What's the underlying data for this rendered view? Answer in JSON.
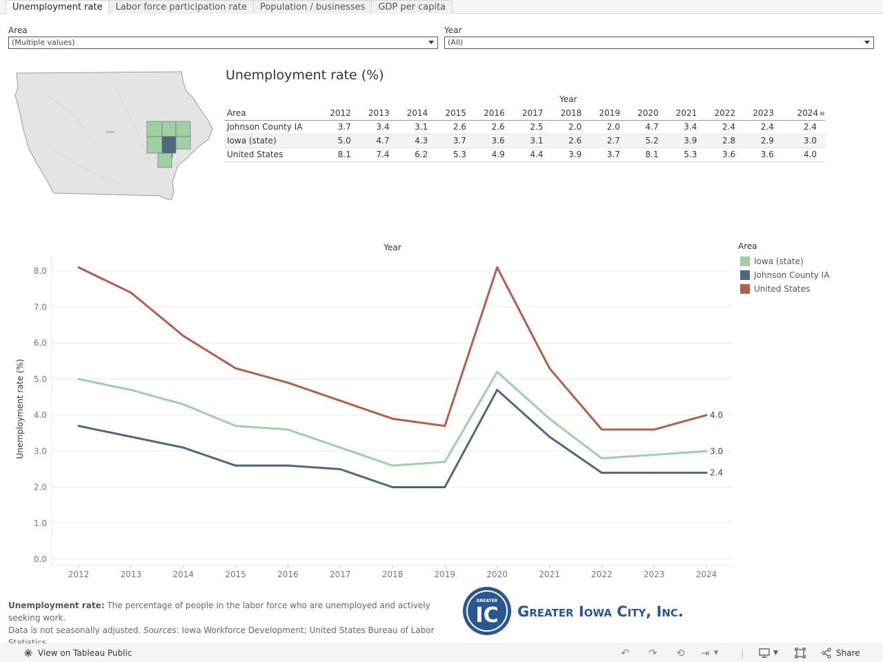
{
  "tabs": [
    {
      "label": "Unemployment rate",
      "active": true
    },
    {
      "label": "Labor force participation rate",
      "active": false
    },
    {
      "label": "Population / businesses",
      "active": false
    },
    {
      "label": "GDP per capita",
      "active": false
    }
  ],
  "filters": {
    "area": {
      "label": "Area",
      "value": "(Multiple values)"
    },
    "year": {
      "label": "Year",
      "value": "(All)"
    }
  },
  "map": {
    "state_label": "Iowa"
  },
  "table": {
    "title": "Unemployment rate (%)",
    "year_header": "Year",
    "area_header": "Area",
    "years": [
      "2012",
      "2013",
      "2014",
      "2015",
      "2016",
      "2017",
      "2018",
      "2019",
      "2020",
      "2021",
      "2022",
      "2023",
      "2024"
    ],
    "rows": [
      {
        "area": "Johnson County IA",
        "values": [
          "3.7",
          "3.4",
          "3.1",
          "2.6",
          "2.6",
          "2.5",
          "2.0",
          "2.0",
          "4.7",
          "3.4",
          "2.4",
          "2.4",
          "2.4"
        ]
      },
      {
        "area": "Iowa (state)",
        "values": [
          "5.0",
          "4.7",
          "4.3",
          "3.7",
          "3.6",
          "3.1",
          "2.6",
          "2.7",
          "5.2",
          "3.9",
          "2.8",
          "2.9",
          "3.0"
        ]
      },
      {
        "area": "United States",
        "values": [
          "8.1",
          "7.4",
          "6.2",
          "5.3",
          "4.9",
          "4.4",
          "3.9",
          "3.7",
          "8.1",
          "5.3",
          "3.6",
          "3.6",
          "4.0"
        ]
      }
    ]
  },
  "chart_data": {
    "type": "line",
    "title": "Year",
    "xlabel": "",
    "ylabel": "Unemployment rate (%)",
    "x": [
      2012,
      2013,
      2014,
      2015,
      2016,
      2017,
      2018,
      2019,
      2020,
      2021,
      2022,
      2023,
      2024
    ],
    "ylim": [
      0,
      8.0
    ],
    "yticks": [
      "0.0",
      "1.0",
      "2.0",
      "3.0",
      "4.0",
      "5.0",
      "6.0",
      "7.0",
      "8.0"
    ],
    "grid": true,
    "legend_position": "right",
    "series": [
      {
        "name": "Iowa (state)",
        "color": "#9fd0a3",
        "values": [
          5.0,
          4.7,
          4.3,
          3.7,
          3.6,
          3.1,
          2.6,
          2.7,
          5.2,
          3.9,
          2.8,
          2.9,
          3.0
        ],
        "end_label": "3.0"
      },
      {
        "name": "Johnson County IA",
        "color": "#4e6882",
        "values": [
          3.7,
          3.4,
          3.1,
          2.6,
          2.6,
          2.5,
          2.0,
          2.0,
          4.7,
          3.4,
          2.4,
          2.4,
          2.4
        ],
        "end_label": "2.4"
      },
      {
        "name": "United States",
        "color": "#b55d4c",
        "values": [
          8.1,
          7.4,
          6.2,
          5.3,
          4.9,
          4.4,
          3.9,
          3.7,
          8.1,
          5.3,
          3.6,
          3.6,
          4.0
        ],
        "end_label": "4.0"
      }
    ]
  },
  "legend": {
    "title": "Area"
  },
  "note": {
    "term": "Unemployment rate:",
    "text": " The percentage of people in the labor force who are unemployed and actively seeking work.",
    "line2": "Data is not seasonally adjusted. ",
    "sources_label": "Sources",
    "sources_text": ": Iowa Workforce Development; United States Bureau of Labor Statistics."
  },
  "logo": {
    "text": "Greater Iowa City, Inc.",
    "badge_top": "GREATER",
    "badge_letters": "IC"
  },
  "toolbar": {
    "view_label": "View on Tableau Public",
    "share_label": "Share"
  }
}
